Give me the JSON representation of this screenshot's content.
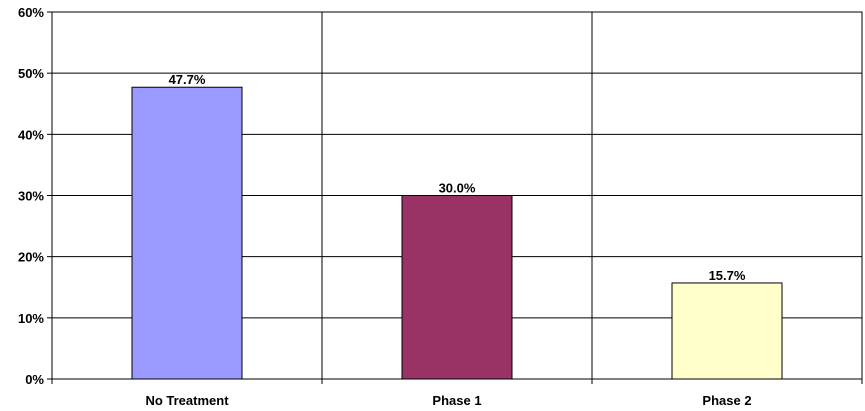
{
  "chart_data": {
    "type": "bar",
    "categories": [
      "No Treatment",
      "Phase 1",
      "Phase 2"
    ],
    "values": [
      47.7,
      30.0,
      15.7
    ],
    "data_labels": [
      "47.7%",
      "30.0%",
      "15.7%"
    ],
    "title": "",
    "xlabel": "",
    "ylabel": "",
    "ylim": [
      0,
      60
    ],
    "y_ticks": [
      0,
      10,
      20,
      30,
      40,
      50,
      60
    ],
    "y_tick_labels": [
      "0%",
      "10%",
      "20%",
      "30%",
      "40%",
      "50%",
      "60%"
    ],
    "grid": {
      "horizontal": true,
      "vertical_category_dividers": true
    },
    "bar_colors": [
      "#9999ff",
      "#993366",
      "#ffffcc"
    ],
    "bar_edge_color": "#000000",
    "legend": "none"
  }
}
